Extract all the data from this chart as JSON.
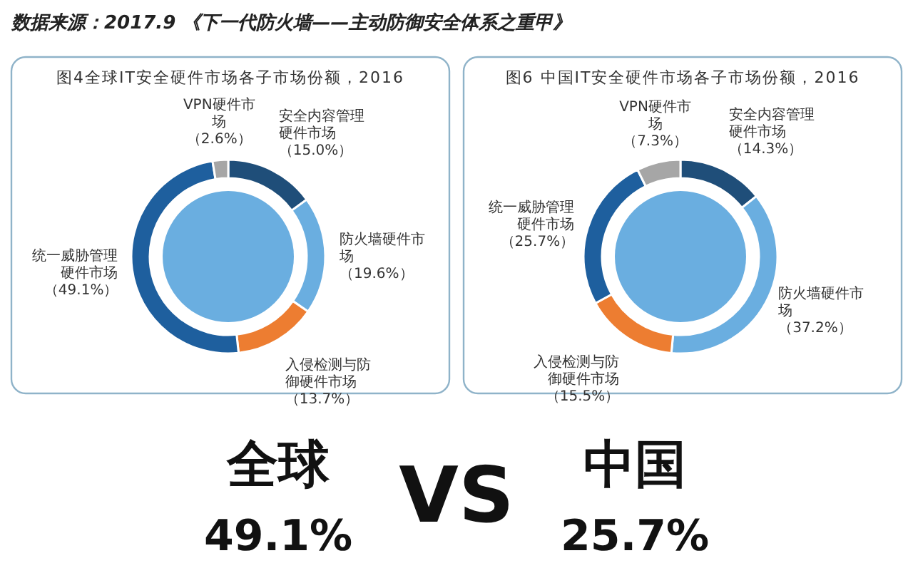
{
  "chart_data": [
    {
      "type": "donut",
      "title": "图4全球IT安全硬件市场各子市场份额，2016",
      "categories": [
        "安全内容管理硬件市场",
        "防火墙硬件市场",
        "入侵检测与防御硬件市场",
        "统一威胁管理硬件市场",
        "VPN硬件市场"
      ],
      "values": [
        15.0,
        19.6,
        13.7,
        49.1,
        2.6
      ],
      "colors": [
        "#1f4e79",
        "#6aaee0",
        "#ed7d31",
        "#1e5f9e",
        "#a6a6a6"
      ],
      "value_labels": [
        "（15.0%）",
        "（19.6%）",
        "（13.7%）",
        "（49.1%）",
        "（2.6%）"
      ],
      "annotations": [
        "数据来源：2017.9 《下一代防火墙——主动防御安全体系之重甲》"
      ]
    },
    {
      "type": "donut",
      "title": "图6 中国IT安全硬件市场各子市场份额，2016",
      "categories": [
        "安全内容管理硬件市场",
        "防火墙硬件市场",
        "入侵检测与防御硬件市场",
        "统一威胁管理硬件市场",
        "VPN硬件市场"
      ],
      "values": [
        14.3,
        37.2,
        15.5,
        25.7,
        7.3
      ],
      "colors": [
        "#1f4e79",
        "#6aaee0",
        "#ed7d31",
        "#1e5f9e",
        "#a6a6a6"
      ],
      "value_labels": [
        "（14.3%）",
        "（37.2%）",
        "（15.5%）",
        "（25.7%）",
        "（7.3%）"
      ]
    },
    {
      "type": "other",
      "annotations": [
        "全球",
        "49.1%",
        "VS",
        "中国",
        "25.7%"
      ]
    }
  ]
}
